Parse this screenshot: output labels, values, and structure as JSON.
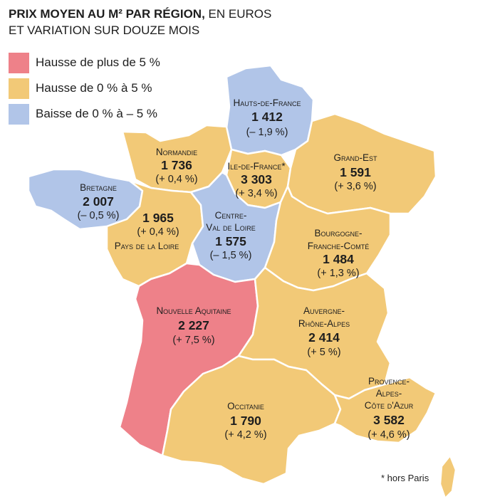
{
  "title": {
    "bold": "PRIX MOYEN AU M² PAR RÉGION,",
    "rest": " EN EUROS",
    "line2": "ET VARIATION SUR DOUZE MOIS"
  },
  "legend": [
    {
      "label": "Hausse de plus de 5 %",
      "color": "#ee8189"
    },
    {
      "label": "Hausse de 0 % à 5 %",
      "color": "#f2c977"
    },
    {
      "label": "Baisse de 0 % à – 5 %",
      "color": "#b1c5e8"
    }
  ],
  "regions": {
    "hauts_de_france": {
      "name": "Hauts-de-France",
      "price": "1 412",
      "variation": "(– 1,9 %)",
      "category": "baisse"
    },
    "normandie": {
      "name": "Normandie",
      "price": "1 736",
      "variation": "(+ 0,4 %)",
      "category": "hausse"
    },
    "ile_de_france": {
      "name": "Ile-de-France*",
      "price": "3 303",
      "variation": "(+ 3,4 %)",
      "category": "hausse"
    },
    "grand_est": {
      "name": "Grand-Est",
      "price": "1 591",
      "variation": "(+ 3,6 %)",
      "category": "hausse"
    },
    "bretagne": {
      "name": "Bretagne",
      "price": "2 007",
      "variation": "(– 0,5 %)",
      "category": "baisse"
    },
    "pays_de_la_loire": {
      "name": "Pays de la Loire",
      "price": "1 965",
      "variation": "(+ 0,4 %)",
      "category": "hausse"
    },
    "centre_val_de_loire": {
      "name_line1": "Centre-",
      "name_line2": "Val de Loire",
      "price": "1 575",
      "variation": "(– 1,5 %)",
      "category": "baisse"
    },
    "bourgogne_franche_comte": {
      "name_line1": "Bourgogne-",
      "name_line2": "Franche-Comté",
      "price": "1 484",
      "variation": "(+ 1,3 %)",
      "category": "hausse"
    },
    "nouvelle_aquitaine": {
      "name": "Nouvelle Aquitaine",
      "price": "2 227",
      "variation": "(+ 7,5 %)",
      "category": "forte_hausse"
    },
    "auvergne_rhone_alpes": {
      "name_line1": "Auvergne-",
      "name_line2": "Rhône-Alpes",
      "price": "2 414",
      "variation": "(+ 5 %)",
      "category": "hausse"
    },
    "occitanie": {
      "name": "Occitanie",
      "price": "1 790",
      "variation": "(+ 4,2 %)",
      "category": "hausse"
    },
    "paca": {
      "name_line1": "Provence-",
      "name_line2": "Alpes-",
      "name_line3": "Côte d'Azur",
      "price": "3 582",
      "variation": "(+ 4,6 %)",
      "category": "hausse"
    }
  },
  "footnote": "* hors Paris"
}
